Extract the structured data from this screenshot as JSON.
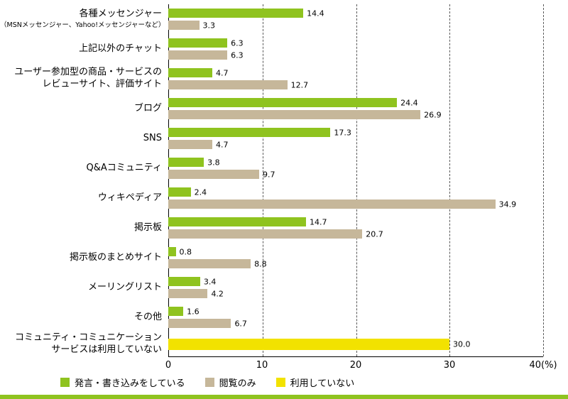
{
  "chart_data": {
    "type": "bar",
    "orientation": "horizontal",
    "xlim": [
      0,
      40
    ],
    "ticks": [
      0,
      10,
      20,
      30,
      40
    ],
    "unit": "(%)",
    "grid": "dashed-vertical",
    "categories": [
      {
        "lines": [
          "各種メッセンジャー"
        ],
        "sublines": [
          "（MSNメッセンジャー、Yahoo!メッセンジャーなど）"
        ]
      },
      {
        "lines": [
          "上記以外のチャット"
        ]
      },
      {
        "lines": [
          "ユーザー参加型の商品・サービスの",
          "レビューサイト、評価サイト"
        ]
      },
      {
        "lines": [
          "ブログ"
        ]
      },
      {
        "lines": [
          "SNS"
        ]
      },
      {
        "lines": [
          "Q&Aコミュニティ"
        ]
      },
      {
        "lines": [
          "ウィキペディア"
        ]
      },
      {
        "lines": [
          "掲示板"
        ]
      },
      {
        "lines": [
          "掲示板のまとめサイト"
        ]
      },
      {
        "lines": [
          "メーリングリスト"
        ]
      },
      {
        "lines": [
          "その他"
        ]
      },
      {
        "lines": [
          "コミュニティ・コミュニケーション",
          "サービスは利用していない"
        ]
      }
    ],
    "series": [
      {
        "key": "posting",
        "name": "発言・書き込みをしている",
        "color": "#8fc31f",
        "values": [
          14.4,
          6.3,
          4.7,
          24.4,
          17.3,
          3.8,
          2.4,
          14.7,
          0.8,
          3.4,
          1.6,
          null
        ]
      },
      {
        "key": "view-only",
        "name": "閲覧のみ",
        "color": "#c6b79a",
        "values": [
          3.3,
          6.3,
          12.7,
          26.9,
          4.7,
          9.7,
          34.9,
          20.7,
          8.8,
          4.2,
          6.7,
          null
        ]
      },
      {
        "key": "not-using",
        "name": "利用していない",
        "color": "#f2e200",
        "values": [
          null,
          null,
          null,
          null,
          null,
          null,
          null,
          null,
          null,
          null,
          null,
          30.0
        ]
      }
    ]
  },
  "footer": {
    "strip_color": "#8fc31f"
  }
}
